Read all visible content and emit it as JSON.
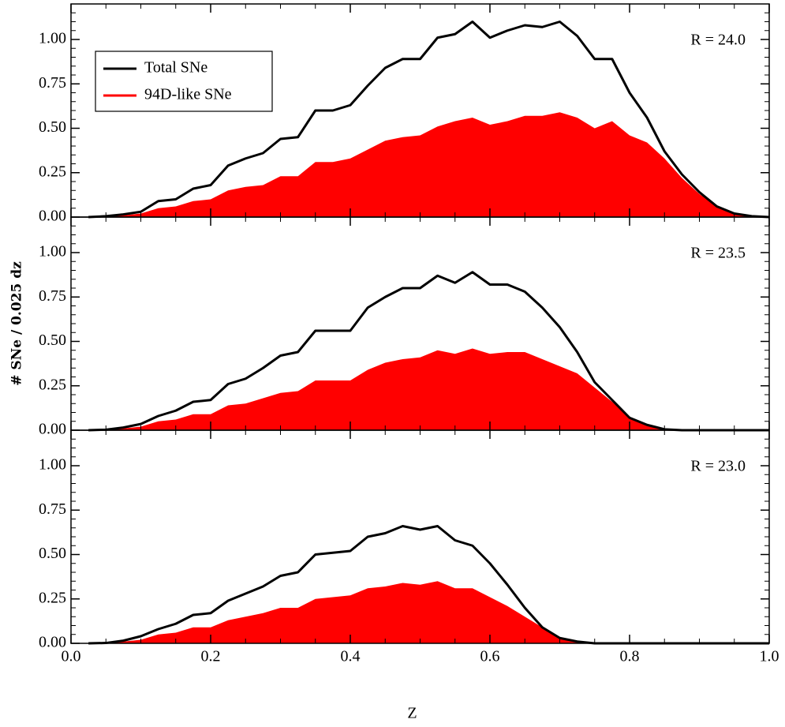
{
  "chart_data": [
    {
      "type": "area",
      "annotation": "R = 24.0",
      "x": [
        0.025,
        0.05,
        0.075,
        0.1,
        0.125,
        0.15,
        0.175,
        0.2,
        0.225,
        0.25,
        0.275,
        0.3,
        0.325,
        0.35,
        0.375,
        0.4,
        0.425,
        0.45,
        0.475,
        0.5,
        0.525,
        0.55,
        0.575,
        0.6,
        0.625,
        0.65,
        0.675,
        0.7,
        0.725,
        0.75,
        0.775,
        0.8,
        0.825,
        0.85,
        0.875,
        0.9,
        0.925,
        0.95,
        0.975,
        1.0
      ],
      "series": [
        {
          "name": "94D-like SNe",
          "color": "#ff0000",
          "style": "area",
          "values": [
            0,
            0.003,
            0.01,
            0.02,
            0.05,
            0.06,
            0.09,
            0.1,
            0.15,
            0.17,
            0.18,
            0.23,
            0.23,
            0.31,
            0.31,
            0.33,
            0.38,
            0.43,
            0.45,
            0.46,
            0.51,
            0.54,
            0.56,
            0.52,
            0.54,
            0.57,
            0.57,
            0.59,
            0.56,
            0.5,
            0.54,
            0.46,
            0.42,
            0.33,
            0.22,
            0.13,
            0.06,
            0.02,
            0.005,
            0
          ]
        },
        {
          "name": "Total SNe",
          "color": "#000000",
          "style": "line",
          "values": [
            0,
            0.005,
            0.015,
            0.03,
            0.09,
            0.1,
            0.16,
            0.18,
            0.29,
            0.33,
            0.36,
            0.44,
            0.45,
            0.6,
            0.6,
            0.63,
            0.74,
            0.84,
            0.89,
            0.89,
            1.01,
            1.03,
            1.1,
            1.01,
            1.05,
            1.08,
            1.07,
            1.1,
            1.02,
            0.89,
            0.89,
            0.7,
            0.56,
            0.37,
            0.24,
            0.14,
            0.06,
            0.02,
            0.005,
            0
          ]
        }
      ],
      "legend": "upper left",
      "xlim": [
        0,
        1
      ],
      "ylim": [
        0,
        1.2
      ],
      "yticks": [
        {
          "value": 0,
          "label": "0.00"
        },
        {
          "value": 0.25,
          "label": "0.25"
        },
        {
          "value": 0.5,
          "label": "0.50"
        },
        {
          "value": 0.75,
          "label": "0.75"
        },
        {
          "value": 1,
          "label": "1.00"
        }
      ]
    },
    {
      "type": "area",
      "annotation": "R = 23.5",
      "ylabel": "# SNe / 0.025 dz",
      "x": [
        0.025,
        0.05,
        0.075,
        0.1,
        0.125,
        0.15,
        0.175,
        0.2,
        0.225,
        0.25,
        0.275,
        0.3,
        0.325,
        0.35,
        0.375,
        0.4,
        0.425,
        0.45,
        0.475,
        0.5,
        0.525,
        0.55,
        0.575,
        0.6,
        0.625,
        0.65,
        0.675,
        0.7,
        0.725,
        0.75,
        0.775,
        0.8,
        0.825,
        0.85,
        0.875,
        0.9,
        0.925,
        0.95,
        0.975,
        1.0
      ],
      "series": [
        {
          "color": "#ff0000",
          "style": "area",
          "values": [
            0,
            0.002,
            0.01,
            0.02,
            0.05,
            0.06,
            0.09,
            0.09,
            0.14,
            0.15,
            0.18,
            0.21,
            0.22,
            0.28,
            0.28,
            0.28,
            0.34,
            0.38,
            0.4,
            0.41,
            0.45,
            0.43,
            0.46,
            0.43,
            0.44,
            0.44,
            0.4,
            0.36,
            0.32,
            0.24,
            0.16,
            0.07,
            0.03,
            0.005,
            0,
            0,
            0,
            0,
            0,
            0
          ]
        },
        {
          "color": "#000000",
          "style": "line",
          "values": [
            0,
            0.003,
            0.015,
            0.035,
            0.08,
            0.11,
            0.16,
            0.17,
            0.26,
            0.29,
            0.35,
            0.42,
            0.44,
            0.56,
            0.56,
            0.56,
            0.69,
            0.75,
            0.8,
            0.8,
            0.87,
            0.83,
            0.89,
            0.82,
            0.82,
            0.78,
            0.69,
            0.58,
            0.44,
            0.27,
            0.17,
            0.07,
            0.03,
            0.005,
            0,
            0,
            0,
            0,
            0,
            0
          ]
        }
      ],
      "xlim": [
        0,
        1
      ],
      "ylim": [
        0,
        1.2
      ],
      "yticks": [
        {
          "value": 0,
          "label": "0.00"
        },
        {
          "value": 0.25,
          "label": "0.25"
        },
        {
          "value": 0.5,
          "label": "0.50"
        },
        {
          "value": 0.75,
          "label": "0.75"
        },
        {
          "value": 1,
          "label": "1.00"
        }
      ]
    },
    {
      "type": "area",
      "annotation": "R = 23.0",
      "xlabel": "Z",
      "x": [
        0.025,
        0.05,
        0.075,
        0.1,
        0.125,
        0.15,
        0.175,
        0.2,
        0.225,
        0.25,
        0.275,
        0.3,
        0.325,
        0.35,
        0.375,
        0.4,
        0.425,
        0.45,
        0.475,
        0.5,
        0.525,
        0.55,
        0.575,
        0.6,
        0.625,
        0.65,
        0.675,
        0.7,
        0.725,
        0.75,
        0.775,
        0.8,
        0.825,
        0.85,
        0.875,
        0.9,
        0.925,
        0.95,
        0.975,
        1.0
      ],
      "series": [
        {
          "color": "#ff0000",
          "style": "area",
          "values": [
            0,
            0.002,
            0.01,
            0.02,
            0.05,
            0.06,
            0.09,
            0.09,
            0.13,
            0.15,
            0.17,
            0.2,
            0.2,
            0.25,
            0.26,
            0.27,
            0.31,
            0.32,
            0.34,
            0.33,
            0.35,
            0.31,
            0.31,
            0.26,
            0.21,
            0.15,
            0.09,
            0.03,
            0.01,
            0,
            0,
            0,
            0,
            0,
            0,
            0,
            0,
            0,
            0,
            0
          ]
        },
        {
          "color": "#000000",
          "style": "line",
          "values": [
            0,
            0.002,
            0.015,
            0.04,
            0.08,
            0.11,
            0.16,
            0.17,
            0.24,
            0.28,
            0.32,
            0.38,
            0.4,
            0.5,
            0.51,
            0.52,
            0.6,
            0.62,
            0.66,
            0.64,
            0.66,
            0.58,
            0.55,
            0.45,
            0.33,
            0.2,
            0.09,
            0.03,
            0.01,
            0,
            0,
            0,
            0,
            0,
            0,
            0,
            0,
            0,
            0,
            0
          ]
        }
      ],
      "xlim": [
        0,
        1
      ],
      "ylim": [
        0,
        1.2
      ],
      "xticks": [
        {
          "value": 0,
          "label": "0.0"
        },
        0.2,
        0.4,
        0.6,
        0.8,
        {
          "value": 1,
          "label": "1.0"
        }
      ],
      "yticks": [
        {
          "value": 0,
          "label": "0.00"
        },
        {
          "value": 0.25,
          "label": "0.25"
        },
        {
          "value": 0.5,
          "label": "0.50"
        },
        {
          "value": 0.75,
          "label": "0.75"
        },
        {
          "value": 1,
          "label": "1.00"
        }
      ]
    }
  ]
}
